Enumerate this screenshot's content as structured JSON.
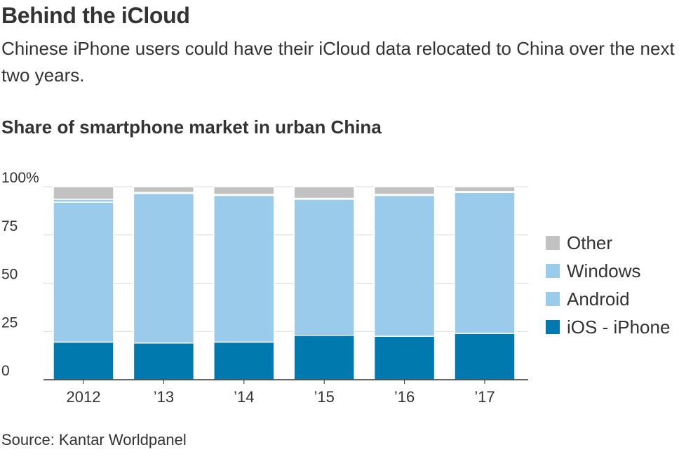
{
  "header": {
    "title": "Behind the iCloud",
    "subtitle": "Chinese iPhone users could have their iCloud data relocated to China over the next two years."
  },
  "footer": {
    "source": "Source: Kantar Worldpanel"
  },
  "colors": {
    "ios": "#0079ae",
    "android": "#9acbeb",
    "windows": "#9acbeb",
    "other": "#c2c2c2",
    "grid": "#d9d9d9",
    "axis": "#333333"
  },
  "chart_data": {
    "type": "bar",
    "stacked": true,
    "title": "Share of smartphone market in urban China",
    "xlabel": "",
    "ylabel": "",
    "ylim": [
      0,
      100
    ],
    "y_ticks": [
      "0",
      "25",
      "50",
      "75",
      "100%"
    ],
    "y_tick_values": [
      0,
      25,
      50,
      75,
      100
    ],
    "categories": [
      "2012",
      "’13",
      "’14",
      "’15",
      "’16",
      "’17"
    ],
    "series": [
      {
        "name": "iOS - iPhone",
        "color_key": "ios",
        "values": [
          19.5,
          19,
          19.5,
          23,
          22.5,
          24
        ]
      },
      {
        "name": "Android",
        "color_key": "android",
        "values": [
          72.5,
          77.5,
          76,
          70.5,
          73,
          73
        ]
      },
      {
        "name": "Windows",
        "color_key": "windows",
        "values": [
          1.5,
          0.5,
          0.5,
          0.5,
          0.5,
          0.5
        ]
      },
      {
        "name": "Other",
        "color_key": "other",
        "values": [
          6.5,
          3,
          4,
          6,
          4,
          2.5
        ]
      }
    ],
    "legend": {
      "placement": "right",
      "order": [
        "Other",
        "Windows",
        "Android",
        "iOS - iPhone"
      ]
    },
    "grid": true
  }
}
